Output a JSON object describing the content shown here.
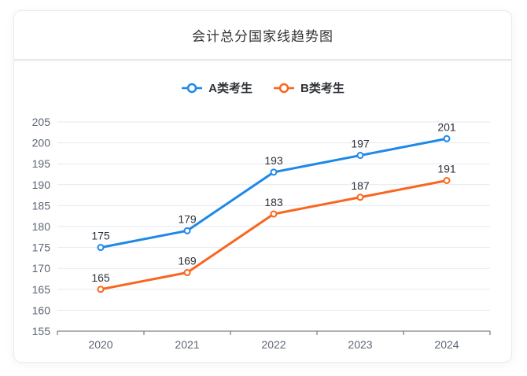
{
  "card": {
    "title": "会计总分国家线趋势图"
  },
  "chart_data": {
    "type": "line",
    "title": "会计总分国家线趋势图",
    "categories": [
      "2020",
      "2021",
      "2022",
      "2023",
      "2024"
    ],
    "series": [
      {
        "name": "A类考生",
        "color": "#1e88e8",
        "values": [
          175,
          179,
          193,
          197,
          201
        ]
      },
      {
        "name": "B类考生",
        "color": "#f8661f",
        "values": [
          165,
          169,
          183,
          187,
          191
        ]
      }
    ],
    "ylim": [
      155,
      205
    ],
    "ytick_step": 5,
    "grid": true,
    "legend_position": "top",
    "xlabel": "",
    "ylabel": "",
    "show_point_labels": true,
    "grid_color": "#e2e9f4",
    "axis_color": "#5b616e",
    "axis_label_color": "#5e6574",
    "point_label_color": "#2b2f36"
  }
}
